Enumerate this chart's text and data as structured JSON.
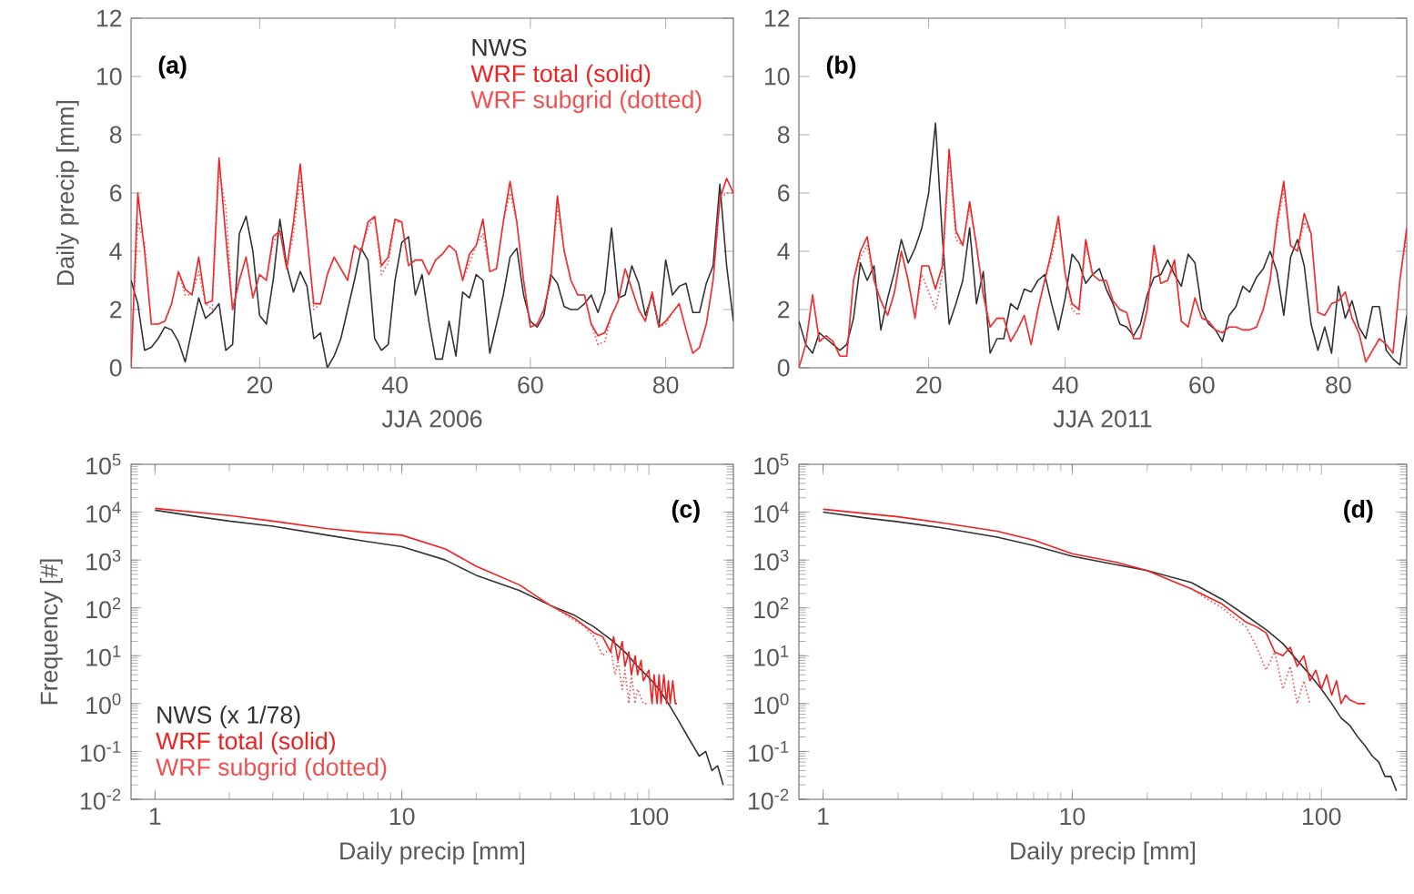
{
  "chart_data": [
    {
      "type": "line",
      "xlabel": "JJA 2006",
      "ylabel": "Daily precip [mm]",
      "xlim": [
        1,
        90
      ],
      "ylim": [
        0,
        12
      ],
      "xticks": [
        20,
        40,
        60,
        80
      ],
      "yticks": [
        0,
        2,
        4,
        6,
        8,
        10,
        12
      ],
      "legend": "top right",
      "annotations": [
        "(a)"
      ],
      "x": [
        1,
        2,
        3,
        4,
        5,
        6,
        7,
        8,
        9,
        10,
        11,
        12,
        13,
        14,
        15,
        16,
        17,
        18,
        19,
        20,
        21,
        22,
        23,
        24,
        25,
        26,
        27,
        28,
        29,
        30,
        31,
        32,
        33,
        34,
        35,
        36,
        37,
        38,
        39,
        40,
        41,
        42,
        43,
        44,
        45,
        46,
        47,
        48,
        49,
        50,
        51,
        52,
        53,
        54,
        55,
        56,
        57,
        58,
        59,
        60,
        61,
        62,
        63,
        64,
        65,
        66,
        67,
        68,
        69,
        70,
        71,
        72,
        73,
        74,
        75,
        76,
        77,
        78,
        79,
        80,
        81,
        82,
        83,
        84,
        85,
        86,
        87,
        88,
        89,
        90
      ],
      "series": [
        {
          "name": "NWS",
          "color": "#333333",
          "line_style": "solid",
          "values": [
            3.0,
            2.2,
            0.6,
            0.7,
            1.0,
            1.4,
            1.3,
            0.9,
            0.2,
            1.3,
            2.4,
            1.7,
            1.9,
            2.2,
            0.6,
            0.8,
            4.6,
            5.2,
            4.0,
            1.8,
            1.5,
            3.0,
            5.1,
            3.5,
            2.6,
            3.3,
            2.8,
            1.0,
            1.2,
            0.0,
            0.4,
            1.0,
            2.0,
            3.0,
            4.1,
            3.7,
            1.0,
            0.6,
            0.8,
            3.0,
            4.3,
            4.5,
            2.5,
            3.2,
            1.6,
            0.3,
            0.3,
            1.6,
            0.4,
            2.6,
            2.4,
            3.2,
            3.0,
            0.5,
            1.5,
            2.5,
            3.8,
            4.1,
            2.5,
            1.6,
            1.4,
            1.8,
            3.2,
            2.9,
            2.1,
            2.0,
            2.0,
            2.2,
            2.5,
            1.9,
            2.6,
            4.8,
            2.4,
            2.5,
            3.5,
            2.9,
            1.8,
            2.5,
            1.4,
            3.7,
            2.5,
            2.8,
            2.9,
            1.9,
            1.9,
            2.9,
            3.5,
            6.3,
            3.5,
            1.6
          ]
        },
        {
          "name": "WRF total (solid)",
          "color": "#ee2222",
          "line_style": "solid",
          "values": [
            0.0,
            6.0,
            4.0,
            1.5,
            1.5,
            1.6,
            2.2,
            3.3,
            2.7,
            2.5,
            3.8,
            2.2,
            2.3,
            7.2,
            4.5,
            2.0,
            3.0,
            3.8,
            2.4,
            3.2,
            3.0,
            4.5,
            4.7,
            3.4,
            5.0,
            7.0,
            4.5,
            2.2,
            2.2,
            3.2,
            3.8,
            3.4,
            3.0,
            4.2,
            4.0,
            5.0,
            5.2,
            3.5,
            3.8,
            5.1,
            5.0,
            3.5,
            3.7,
            3.7,
            3.2,
            3.7,
            3.9,
            4.2,
            4.0,
            3.0,
            3.9,
            4.2,
            5.1,
            3.3,
            3.4,
            5.0,
            6.4,
            5.0,
            3.0,
            1.4,
            1.5,
            2.0,
            3.0,
            5.9,
            4.0,
            3.0,
            2.5,
            2.5,
            1.5,
            1.1,
            1.2,
            1.8,
            2.3,
            3.4,
            2.7,
            2.0,
            1.6,
            2.6,
            1.4,
            1.6,
            1.9,
            2.2,
            1.3,
            0.5,
            0.7,
            1.5,
            3.0,
            5.8,
            6.5,
            6.0
          ]
        },
        {
          "name": "WRF subgrid (dotted)",
          "color": "#f05050",
          "line_style": "dotted",
          "values": [
            0.0,
            5.0,
            4.3,
            1.5,
            1.5,
            1.6,
            2.2,
            3.3,
            2.5,
            2.5,
            3.3,
            2.2,
            2.0,
            6.8,
            5.5,
            2.0,
            3.0,
            3.8,
            2.4,
            3.2,
            3.0,
            4.3,
            4.7,
            3.4,
            4.6,
            6.5,
            4.5,
            2.0,
            2.2,
            3.2,
            3.8,
            3.4,
            3.0,
            4.2,
            4.0,
            4.8,
            5.2,
            3.2,
            3.6,
            5.0,
            5.0,
            3.5,
            3.7,
            3.7,
            3.2,
            3.7,
            3.9,
            4.2,
            4.0,
            3.0,
            3.6,
            4.2,
            4.6,
            3.3,
            3.4,
            5.0,
            6.0,
            5.0,
            3.0,
            1.4,
            1.5,
            2.0,
            3.0,
            5.5,
            4.0,
            3.0,
            2.5,
            2.5,
            1.5,
            0.8,
            0.9,
            1.8,
            2.3,
            3.4,
            2.7,
            2.0,
            1.6,
            2.6,
            1.4,
            1.5,
            1.9,
            2.2,
            1.3,
            0.5,
            0.7,
            1.5,
            3.0,
            5.8,
            6.0,
            6.0
          ]
        }
      ]
    },
    {
      "type": "line",
      "xlabel": "JJA 2011",
      "xlim": [
        1,
        90
      ],
      "ylim": [
        0,
        12
      ],
      "xticks": [
        20,
        40,
        60,
        80
      ],
      "yticks": [
        0,
        2,
        4,
        6,
        8,
        10,
        12
      ],
      "annotations": [
        "(b)"
      ],
      "x": [
        1,
        2,
        3,
        4,
        5,
        6,
        7,
        8,
        9,
        10,
        11,
        12,
        13,
        14,
        15,
        16,
        17,
        18,
        19,
        20,
        21,
        22,
        23,
        24,
        25,
        26,
        27,
        28,
        29,
        30,
        31,
        32,
        33,
        34,
        35,
        36,
        37,
        38,
        39,
        40,
        41,
        42,
        43,
        44,
        45,
        46,
        47,
        48,
        49,
        50,
        51,
        52,
        53,
        54,
        55,
        56,
        57,
        58,
        59,
        60,
        61,
        62,
        63,
        64,
        65,
        66,
        67,
        68,
        69,
        70,
        71,
        72,
        73,
        74,
        75,
        76,
        77,
        78,
        79,
        80,
        81,
        82,
        83,
        84,
        85,
        86,
        87,
        88,
        89,
        90
      ],
      "series": [
        {
          "color": "#333333",
          "line_style": "solid",
          "values": [
            1.6,
            0.8,
            0.5,
            1.2,
            1.0,
            0.8,
            0.6,
            0.8,
            1.7,
            3.6,
            3.0,
            3.5,
            1.3,
            2.4,
            3.3,
            4.4,
            3.6,
            4.1,
            4.8,
            6.0,
            8.4,
            4.5,
            1.5,
            2.2,
            3.0,
            4.8,
            2.2,
            3.3,
            0.5,
            1.0,
            1.0,
            2.2,
            2.0,
            2.7,
            2.6,
            3.0,
            3.2,
            2.2,
            1.3,
            2.4,
            3.9,
            3.6,
            2.9,
            3.2,
            3.4,
            2.7,
            2.2,
            1.5,
            1.4,
            1.1,
            1.5,
            2.5,
            3.1,
            3.2,
            3.7,
            3.2,
            2.8,
            3.9,
            3.6,
            2.0,
            1.5,
            1.3,
            0.9,
            1.8,
            2.1,
            2.8,
            2.6,
            3.1,
            3.4,
            4.0,
            3.3,
            1.8,
            3.8,
            4.4,
            3.5,
            1.5,
            0.6,
            1.4,
            0.5,
            2.8,
            1.7,
            2.3,
            1.4,
            1.0,
            2.1,
            2.1,
            0.6,
            0.3,
            0.1,
            1.8
          ]
        },
        {
          "color": "#ee2222",
          "line_style": "solid",
          "values": [
            0.0,
            0.8,
            2.5,
            0.9,
            1.1,
            0.9,
            0.4,
            0.4,
            3.0,
            4.0,
            4.5,
            3.0,
            2.3,
            1.8,
            2.6,
            4.0,
            3.0,
            1.7,
            3.5,
            3.5,
            2.7,
            3.5,
            7.5,
            4.7,
            4.2,
            5.7,
            4.2,
            2.5,
            1.4,
            1.7,
            1.7,
            0.9,
            1.3,
            1.8,
            0.8,
            2.0,
            3.0,
            4.0,
            5.2,
            3.2,
            2.2,
            2.0,
            4.4,
            3.2,
            3.0,
            3.0,
            2.3,
            2.0,
            1.9,
            1.0,
            1.0,
            2.0,
            4.2,
            2.9,
            3.0,
            3.7,
            1.6,
            1.4,
            2.4,
            1.7,
            1.6,
            1.3,
            1.2,
            1.4,
            1.4,
            1.3,
            1.3,
            1.4,
            2.0,
            3.0,
            5.0,
            6.4,
            4.2,
            4.0,
            5.3,
            4.6,
            1.9,
            1.8,
            2.2,
            2.3,
            2.6,
            1.7,
            1.2,
            0.2,
            0.6,
            1.0,
            0.8,
            0.5,
            3.0,
            4.8
          ]
        },
        {
          "color": "#f05050",
          "line_style": "dotted",
          "values": [
            0.0,
            0.8,
            2.5,
            0.9,
            1.1,
            0.9,
            0.4,
            0.4,
            3.0,
            3.8,
            4.2,
            3.0,
            2.3,
            1.8,
            2.6,
            4.0,
            3.0,
            1.7,
            3.2,
            2.6,
            2.0,
            3.2,
            7.2,
            4.4,
            4.2,
            5.5,
            4.2,
            2.5,
            1.4,
            1.7,
            1.7,
            0.9,
            1.3,
            1.8,
            0.8,
            2.0,
            3.0,
            3.8,
            5.0,
            3.2,
            2.0,
            1.8,
            4.2,
            3.2,
            3.0,
            3.0,
            2.3,
            2.0,
            1.9,
            1.0,
            1.0,
            2.0,
            4.0,
            2.9,
            3.0,
            3.5,
            1.6,
            1.4,
            2.4,
            1.7,
            1.6,
            1.3,
            1.2,
            1.4,
            1.4,
            1.3,
            1.3,
            1.4,
            2.0,
            3.0,
            4.8,
            6.1,
            4.2,
            4.0,
            5.0,
            4.6,
            1.9,
            1.8,
            2.2,
            2.3,
            2.6,
            1.7,
            1.2,
            0.2,
            0.6,
            1.0,
            0.8,
            0.5,
            3.0,
            4.5
          ]
        }
      ]
    },
    {
      "type": "line",
      "xlabel": "Daily precip [mm]",
      "ylabel": "Frequency [#]",
      "log": "xy",
      "xlim": [
        0.8,
        220
      ],
      "ylim": [
        0.01,
        100000
      ],
      "xticks": [
        1,
        10,
        100
      ],
      "yticks": [
        {
          "value": 0.01,
          "label": "10$^{-2}$"
        },
        {
          "value": 0.1,
          "label": "10$^{-1}$"
        },
        {
          "value": 1,
          "label": "10$^{0}$"
        },
        {
          "value": 10,
          "label": "10$^{1}$"
        },
        {
          "value": 100,
          "label": "10$^{2}$"
        },
        {
          "value": 1000,
          "label": "10$^{3}$"
        },
        {
          "value": 10000,
          "label": "10$^{4}$"
        },
        {
          "value": 100000,
          "label": "10$^{5}$"
        }
      ],
      "legend": "bottom left",
      "annotations": [
        "(c)"
      ],
      "series": [
        {
          "name": "NWS (x 1/78)",
          "color": "#333333",
          "line_style": "solid",
          "x": [
            1,
            1.5,
            2,
            3,
            5,
            7,
            10,
            15,
            20,
            30,
            40,
            50,
            60,
            70,
            80,
            90,
            100,
            110,
            120,
            130,
            150,
            160,
            170,
            180,
            190,
            200
          ],
          "values": [
            11000,
            8000,
            6500,
            5100,
            3300,
            2500,
            1900,
            1000,
            480,
            230,
            112,
            70,
            40,
            22,
            12,
            6,
            3.5,
            2,
            1.0,
            0.5,
            0.14,
            0.08,
            0.1,
            0.04,
            0.05,
            0.02
          ]
        },
        {
          "name": "WRF total (solid)",
          "color": "#ee2222",
          "line_style": "solid",
          "x": [
            1,
            2,
            3,
            5,
            7,
            10,
            15,
            20,
            30,
            40,
            50,
            60,
            65,
            70,
            72,
            75,
            78,
            80,
            83,
            85,
            88,
            90,
            93,
            95,
            100,
            103,
            105,
            108,
            110,
            112,
            115,
            118,
            120,
            122,
            125,
            128,
            130
          ],
          "values": [
            12000,
            8500,
            6500,
            4500,
            3800,
            3300,
            1700,
            740,
            300,
            112,
            60,
            30,
            25,
            12,
            25,
            8,
            20,
            6,
            12,
            4,
            10,
            4,
            8,
            3,
            5,
            1,
            4,
            1,
            4,
            1,
            4,
            1,
            3,
            1,
            3,
            1,
            1
          ]
        },
        {
          "name": "WRF subgrid (dotted)",
          "color": "#f05050",
          "line_style": "dotted",
          "x": [
            30,
            40,
            50,
            55,
            60,
            65,
            70,
            73,
            75,
            78,
            80,
            83,
            85,
            88,
            90,
            95,
            100
          ],
          "values": [
            300,
            112,
            55,
            40,
            25,
            10,
            15,
            4,
            8,
            2,
            5,
            1,
            4,
            1,
            2,
            1,
            1
          ]
        }
      ]
    },
    {
      "type": "line",
      "xlabel": "Daily precip [mm]",
      "log": "xy",
      "xlim": [
        0.8,
        220
      ],
      "ylim": [
        0.01,
        100000
      ],
      "xticks": [
        1,
        10,
        100
      ],
      "yticks": [
        {
          "value": 0.01,
          "label": "10$^{-2}$"
        },
        {
          "value": 0.1,
          "label": "10$^{-1}$"
        },
        {
          "value": 1,
          "label": "10$^{0}$"
        },
        {
          "value": 10,
          "label": "10$^{1}$"
        },
        {
          "value": 100,
          "label": "10$^{2}$"
        },
        {
          "value": 1000,
          "label": "10$^{3}$"
        },
        {
          "value": 10000,
          "label": "10$^{4}$"
        },
        {
          "value": 100000,
          "label": "10$^{5}$"
        }
      ],
      "annotations": [
        "(d)"
      ],
      "series": [
        {
          "color": "#333333",
          "line_style": "solid",
          "x": [
            1,
            1.5,
            2,
            3,
            5,
            7,
            10,
            15,
            20,
            30,
            40,
            50,
            60,
            70,
            80,
            90,
            100,
            110,
            120,
            130,
            140,
            150,
            160,
            170,
            180,
            190,
            200
          ],
          "values": [
            10000,
            7500,
            6300,
            4700,
            3000,
            2000,
            1200,
            800,
            600,
            340,
            150,
            68,
            35,
            18,
            8,
            4,
            2,
            1.0,
            0.5,
            0.35,
            0.2,
            0.13,
            0.08,
            0.06,
            0.03,
            0.03,
            0.015
          ]
        },
        {
          "color": "#ee2222",
          "line_style": "solid",
          "x": [
            1,
            2,
            3,
            5,
            7,
            10,
            15,
            20,
            30,
            40,
            50,
            55,
            60,
            65,
            70,
            75,
            80,
            85,
            90,
            95,
            100,
            105,
            110,
            115,
            120,
            125,
            130,
            140,
            150
          ],
          "values": [
            11500,
            8000,
            6000,
            4000,
            2600,
            1350,
            900,
            600,
            250,
            120,
            50,
            40,
            30,
            12,
            10,
            15,
            6,
            10,
            3,
            5,
            2,
            4,
            1.5,
            3,
            1,
            1.5,
            1.2,
            1,
            1
          ]
        },
        {
          "color": "#f05050",
          "line_style": "dotted",
          "x": [
            30,
            35,
            40,
            45,
            50,
            55,
            60,
            65,
            70,
            75,
            80,
            85,
            90
          ],
          "values": [
            250,
            150,
            100,
            60,
            40,
            15,
            5,
            12,
            2,
            6,
            1,
            3,
            1
          ]
        }
      ]
    }
  ]
}
